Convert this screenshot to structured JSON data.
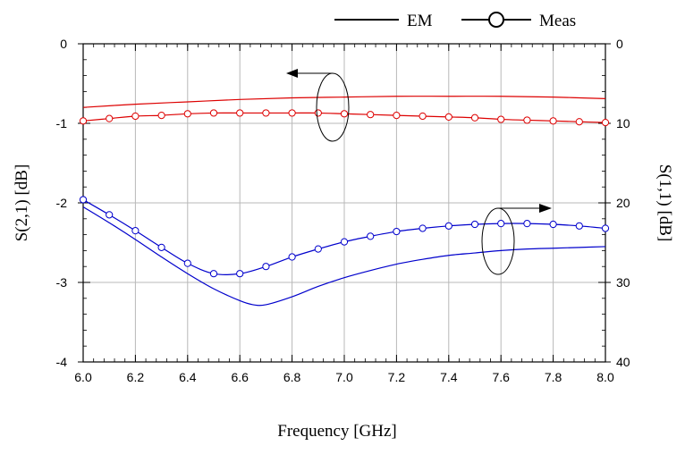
{
  "legend": [
    {
      "label": "EM",
      "style": "line"
    },
    {
      "label": "Meas",
      "style": "line-circle"
    }
  ],
  "chart_data": {
    "type": "line",
    "xlabel": "Frequency [GHz]",
    "ylabel_left": "S(2,1) [dB]",
    "ylabel_right": "S(1,1) [dB]",
    "xlim": [
      6.0,
      8.0
    ],
    "ylim_left": [
      -4,
      0
    ],
    "ylim_right": [
      40,
      0
    ],
    "x_ticks": [
      "6.0",
      "6.2",
      "6.4",
      "6.6",
      "6.8",
      "7.0",
      "7.2",
      "7.4",
      "7.6",
      "7.8",
      "8.0"
    ],
    "y_left_ticks": [
      "0",
      "-1",
      "-2",
      "-3",
      "-4"
    ],
    "y_right_ticks": [
      "0",
      "10",
      "20",
      "30",
      "40"
    ],
    "grid": true,
    "legend_position": "top-right",
    "colors": {
      "s21": "#dd0000",
      "s11": "#0000cc",
      "circle": "#ffffff"
    },
    "series": [
      {
        "legend": "EM",
        "axis": "left",
        "color": "#dd0000",
        "marker": "none",
        "x": [
          6.0,
          6.2,
          6.4,
          6.6,
          6.8,
          7.0,
          7.2,
          7.4,
          7.6,
          7.8,
          8.0
        ],
        "values": [
          -0.8,
          -0.76,
          -0.73,
          -0.7,
          -0.68,
          -0.67,
          -0.66,
          -0.66,
          -0.66,
          -0.67,
          -0.69
        ]
      },
      {
        "legend": "Meas",
        "axis": "left",
        "color": "#dd0000",
        "marker": "circle",
        "x": [
          6.0,
          6.1,
          6.2,
          6.3,
          6.4,
          6.5,
          6.6,
          6.7,
          6.8,
          6.9,
          7.0,
          7.1,
          7.2,
          7.3,
          7.4,
          7.5,
          7.6,
          7.7,
          7.8,
          7.9,
          8.0
        ],
        "values": [
          -0.97,
          -0.94,
          -0.91,
          -0.9,
          -0.88,
          -0.87,
          -0.87,
          -0.87,
          -0.87,
          -0.87,
          -0.88,
          -0.89,
          -0.9,
          -0.91,
          -0.92,
          -0.93,
          -0.95,
          -0.96,
          -0.97,
          -0.98,
          -0.99
        ]
      },
      {
        "legend": "EM",
        "axis": "right",
        "color": "#0000cc",
        "marker": "none",
        "x": [
          6.0,
          6.1,
          6.2,
          6.3,
          6.4,
          6.5,
          6.6,
          6.65,
          6.7,
          6.8,
          6.9,
          7.0,
          7.1,
          7.2,
          7.3,
          7.4,
          7.5,
          7.6,
          7.7,
          7.8,
          7.9,
          8.0
        ],
        "values": [
          20.5,
          22.5,
          24.6,
          26.8,
          28.9,
          30.8,
          32.3,
          32.8,
          32.8,
          31.8,
          30.5,
          29.4,
          28.5,
          27.7,
          27.1,
          26.6,
          26.3,
          26.0,
          25.8,
          25.7,
          25.6,
          25.5
        ]
      },
      {
        "legend": "Meas",
        "axis": "right",
        "color": "#0000cc",
        "marker": "circle",
        "x": [
          6.0,
          6.1,
          6.2,
          6.3,
          6.4,
          6.5,
          6.6,
          6.7,
          6.8,
          6.9,
          7.0,
          7.1,
          7.2,
          7.3,
          7.4,
          7.5,
          7.6,
          7.7,
          7.8,
          7.9,
          8.0
        ],
        "values": [
          19.6,
          21.5,
          23.5,
          25.6,
          27.6,
          28.9,
          28.9,
          28.0,
          26.8,
          25.8,
          24.9,
          24.2,
          23.6,
          23.2,
          22.9,
          22.7,
          22.6,
          22.6,
          22.7,
          22.9,
          23.2
        ]
      }
    ]
  }
}
